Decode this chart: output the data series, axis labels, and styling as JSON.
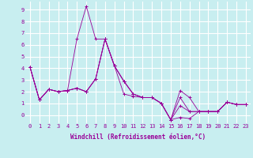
{
  "xlabel": "Windchill (Refroidissement éolien,°C)",
  "background_color": "#c8eef0",
  "grid_color": "#ffffff",
  "line_color": "#990099",
  "xlim": [
    -0.5,
    23.5
  ],
  "ylim": [
    -0.7,
    9.7
  ],
  "xticks": [
    0,
    1,
    2,
    3,
    4,
    5,
    6,
    7,
    8,
    9,
    10,
    11,
    12,
    13,
    14,
    15,
    16,
    17,
    18,
    19,
    20,
    21,
    22,
    23
  ],
  "yticks": [
    0,
    1,
    2,
    3,
    4,
    5,
    6,
    7,
    8,
    9
  ],
  "series": [
    [
      4.1,
      1.3,
      2.2,
      2.0,
      2.1,
      6.5,
      9.3,
      6.5,
      6.5,
      4.2,
      1.8,
      1.6,
      1.5,
      1.5,
      1.0,
      -0.4,
      -0.2,
      -0.3,
      0.3,
      0.3,
      0.3,
      1.1,
      0.9,
      0.9
    ],
    [
      4.1,
      1.3,
      2.2,
      2.0,
      2.1,
      2.3,
      2.0,
      3.1,
      6.5,
      4.2,
      2.9,
      1.8,
      1.5,
      1.5,
      1.0,
      -0.4,
      2.1,
      1.5,
      0.3,
      0.3,
      0.3,
      1.1,
      0.9,
      0.9
    ],
    [
      4.1,
      1.3,
      2.2,
      2.0,
      2.1,
      2.3,
      2.0,
      3.1,
      6.5,
      4.2,
      2.9,
      1.8,
      1.5,
      1.5,
      1.0,
      -0.4,
      1.5,
      0.3,
      0.3,
      0.3,
      0.3,
      1.1,
      0.9,
      0.9
    ],
    [
      4.1,
      1.3,
      2.2,
      2.0,
      2.1,
      2.3,
      2.0,
      3.1,
      6.5,
      4.2,
      2.9,
      1.8,
      1.5,
      1.5,
      1.0,
      -0.4,
      0.8,
      0.3,
      0.3,
      0.3,
      0.3,
      1.1,
      0.9,
      0.9
    ]
  ],
  "label_fontsize": 5.0,
  "tick_fontsize": 5.0,
  "xlabel_fontsize": 5.5
}
